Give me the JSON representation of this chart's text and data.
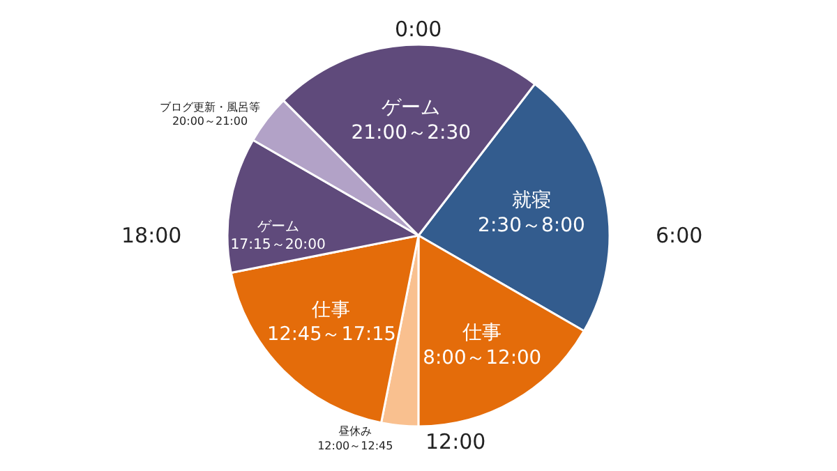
{
  "chart_data": {
    "type": "pie",
    "categories": [
      "就寝\n2:30～8:00",
      "仕事\n8:00～12:00",
      "昼休み\n12:00～12:45",
      "仕事\n12:45～17:15",
      "ゲーム\n17:15～20:00",
      "ブログ更新・風呂等\n20:00～21:00",
      "ゲーム\n21:00～2:30"
    ],
    "values": [
      22.92,
      16.67,
      3.12,
      18.75,
      11.46,
      4.17,
      22.91
    ],
    "colors": [
      "#335c8e",
      "#e46c0a",
      "#f9c08f",
      "#e46c0a",
      "#5f4a7b",
      "#b2a2c7",
      "#5f4a7b"
    ],
    "annotations": [
      "0:00",
      "6:00",
      "12:00",
      "18:00"
    ],
    "legend": false
  }
}
